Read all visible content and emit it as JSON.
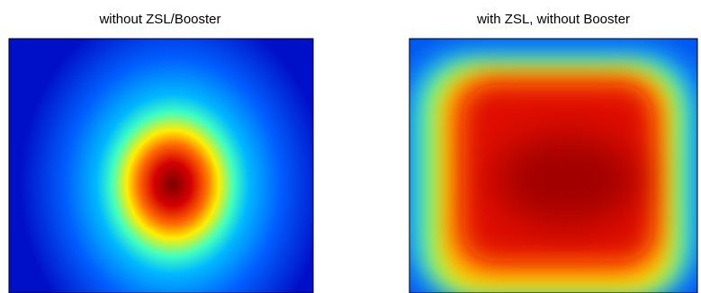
{
  "panels": [
    {
      "title": "without ZSL/Booster"
    },
    {
      "title": "with ZSL, without Booster"
    }
  ]
}
